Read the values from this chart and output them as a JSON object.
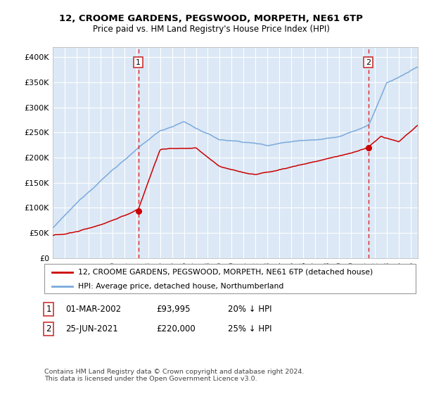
{
  "title": "12, CROOME GARDENS, PEGSWOOD, MORPETH, NE61 6TP",
  "subtitle": "Price paid vs. HM Land Registry's House Price Index (HPI)",
  "legend_line1": "12, CROOME GARDENS, PEGSWOOD, MORPETH, NE61 6TP (detached house)",
  "legend_line2": "HPI: Average price, detached house, Northumberland",
  "annotation1_date": "01-MAR-2002",
  "annotation1_price": "£93,995",
  "annotation1_hpi": "20% ↓ HPI",
  "annotation2_date": "25-JUN-2021",
  "annotation2_price": "£220,000",
  "annotation2_hpi": "25% ↓ HPI",
  "footnote": "Contains HM Land Registry data © Crown copyright and database right 2024.\nThis data is licensed under the Open Government Licence v3.0.",
  "red_color": "#cc0000",
  "blue_color": "#7aaadd",
  "vline_color": "#dd2222",
  "box_edge_color": "#cc3333",
  "bg_color": "#dce8f5",
  "grid_color": "#ffffff",
  "ylim": [
    0,
    420000
  ],
  "yticks": [
    0,
    50000,
    100000,
    150000,
    200000,
    250000,
    300000,
    350000,
    400000
  ],
  "sale1_year": 2002.17,
  "sale1_price": 93995,
  "sale2_year": 2021.46,
  "sale2_price": 220000,
  "xlim_start": 1995,
  "xlim_end": 2025.6
}
